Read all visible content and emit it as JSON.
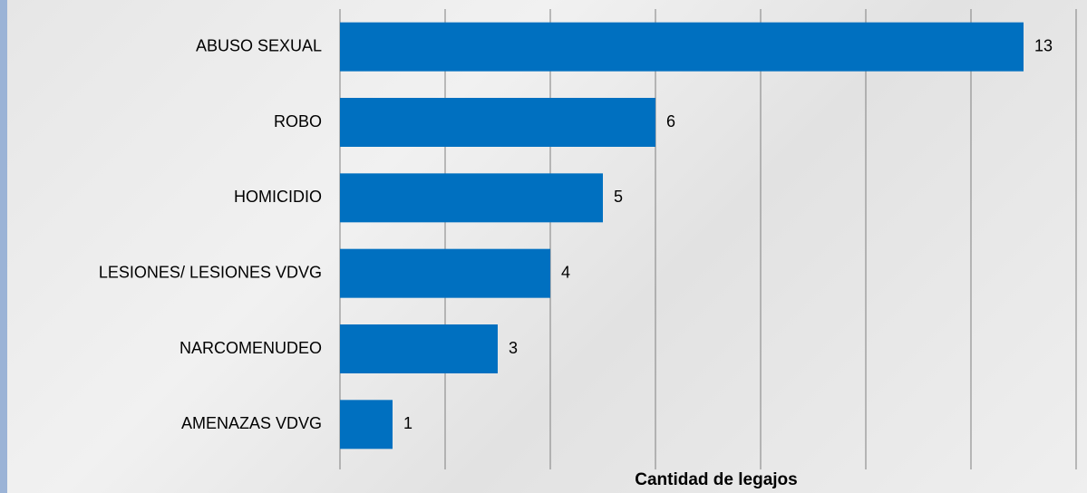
{
  "chart_data": {
    "type": "bar",
    "orientation": "horizontal",
    "categories": [
      "ABUSO SEXUAL",
      "ROBO",
      "HOMICIDIO",
      "LESIONES/ LESIONES VDVG",
      "NARCOMENUDEO",
      "AMENAZAS VDVG"
    ],
    "values": [
      13,
      6,
      5,
      4,
      3,
      1
    ],
    "color": "#0070c0",
    "x_label": "Cantidad de legajos",
    "xlim": [
      0,
      14
    ],
    "xticks": [
      0,
      2,
      4,
      6,
      8,
      10,
      12,
      14
    ],
    "grid": true
  }
}
